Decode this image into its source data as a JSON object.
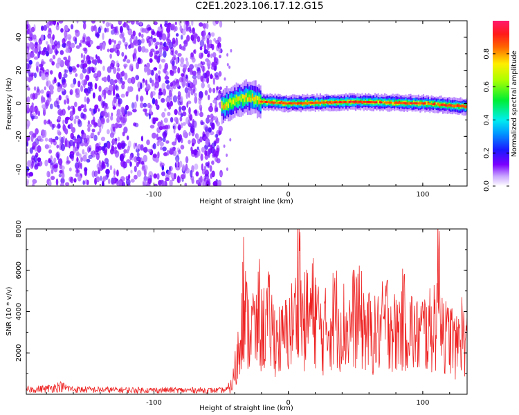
{
  "figure": {
    "title": "C2E1.2023.106.17.12.G15"
  },
  "chart_data": [
    {
      "type": "heatmap",
      "title": "C2E1.2023.106.17.12.G15",
      "xlabel": "Height of straight line (km)",
      "ylabel": "Frequency (Hz)",
      "xlim": [
        -195,
        133
      ],
      "ylim": [
        -50,
        50
      ],
      "xticks": [
        -100,
        0,
        100
      ],
      "xtick_labels": [
        "-100",
        "0",
        "100"
      ],
      "yticks": [
        -40,
        -20,
        0,
        20,
        40
      ],
      "ytick_labels": [
        "-40",
        "-20",
        "0",
        "20",
        "40"
      ],
      "grid": false,
      "colorbar": {
        "label": "Normalized spectral amplitude",
        "range": [
          0,
          1
        ],
        "ticks": [
          0,
          0.2,
          0.4,
          0.6,
          0.8
        ],
        "tick_labels": [
          "0.0",
          "0.2",
          "0.4",
          "0.6",
          "0.8"
        ],
        "colormap": "rainbow (white-violet-blue-cyan-green-yellow-red-pink)",
        "placement": "right"
      },
      "regions": [
        {
          "x_range": [
            -195,
            -50
          ],
          "description_values": {
            "freq_range": [
              -50,
              50
            ],
            "amplitude_range": [
              0.0,
              0.1
            ]
          }
        },
        {
          "x_range": [
            -50,
            133
          ],
          "description_values": {
            "center_frequency": [
              [
                -50,
                -2
              ],
              [
                -40,
                2
              ],
              [
                -30,
                4
              ],
              [
                -20,
                1
              ],
              [
                0,
                0
              ],
              [
                50,
                1
              ],
              [
                100,
                0
              ],
              [
                133,
                -2
              ]
            ],
            "peak_amplitude": 0.9
          }
        }
      ]
    },
    {
      "type": "line",
      "xlabel": "Height of straight line (km)",
      "ylabel": "SNR (10 * v/v)",
      "xlim": [
        -195,
        133
      ],
      "ylim": [
        0,
        8000
      ],
      "xticks": [
        -100,
        0,
        100
      ],
      "xtick_labels": [
        "-100",
        "0",
        "100"
      ],
      "yticks": [
        2000,
        4000,
        6000,
        8000
      ],
      "ytick_labels": [
        "2000",
        "4000",
        "6000",
        "8000"
      ],
      "grid": false,
      "series_color": "#ee2222",
      "series": [
        {
          "x": [
            -195,
            -180,
            -170,
            -160,
            -150,
            -140,
            -130,
            -120,
            -110,
            -100,
            -90,
            -80,
            -70,
            -60,
            -50,
            -45,
            -42,
            -40,
            -38,
            -36,
            -34,
            -32,
            -30,
            -28,
            -26,
            -24,
            -22,
            -20,
            -15,
            -10,
            -5,
            0,
            5,
            8,
            10,
            15,
            20,
            25,
            30,
            35,
            40,
            45,
            50,
            55,
            60,
            65,
            70,
            75,
            80,
            85,
            90,
            95,
            100,
            105,
            110,
            112,
            115,
            118,
            120,
            125,
            128,
            130,
            133
          ],
          "y": [
            300,
            350,
            500,
            300,
            300,
            280,
            280,
            270,
            270,
            260,
            270,
            260,
            260,
            250,
            250,
            300,
            500,
            1200,
            2000,
            3000,
            6400,
            4500,
            3500,
            3800,
            4000,
            3200,
            4800,
            3600,
            4200,
            3300,
            3000,
            3600,
            4200,
            8000,
            3800,
            4500,
            4800,
            3300,
            3900,
            4500,
            4000,
            3700,
            4600,
            4100,
            3500,
            3300,
            3800,
            4500,
            3300,
            4200,
            3900,
            3200,
            3600,
            3500,
            4400,
            7000,
            4000,
            3000,
            3500,
            2500,
            3800,
            3300,
            3000
          ]
        }
      ]
    }
  ]
}
